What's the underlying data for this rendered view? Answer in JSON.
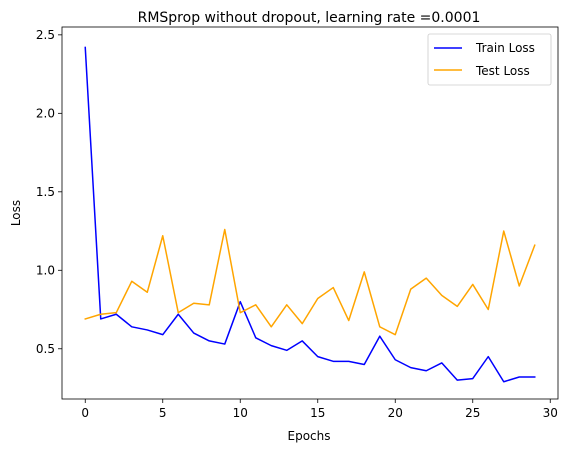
{
  "chart_data": {
    "type": "line",
    "title": "RMSprop without dropout, learning rate =0.0001",
    "xlabel": "Epochs",
    "ylabel": "Loss",
    "xlim": [
      -1.5,
      30.5
    ],
    "ylim": [
      0.18,
      2.55
    ],
    "xticks": [
      0,
      5,
      10,
      15,
      20,
      25,
      30
    ],
    "yticks": [
      0.5,
      1.0,
      1.5,
      2.0,
      2.5
    ],
    "ytick_labels": [
      "0.5",
      "1.0",
      "1.5",
      "2.0",
      "2.5"
    ],
    "grid": false,
    "legend_position": "top-right",
    "x": [
      0,
      1,
      2,
      3,
      4,
      5,
      6,
      7,
      8,
      9,
      10,
      11,
      12,
      13,
      14,
      15,
      16,
      17,
      18,
      19,
      20,
      21,
      22,
      23,
      24,
      25,
      26,
      27,
      28,
      29
    ],
    "series": [
      {
        "name": "Train Loss",
        "color": "#0000ff",
        "values": [
          2.42,
          0.69,
          0.72,
          0.64,
          0.62,
          0.59,
          0.72,
          0.6,
          0.55,
          0.53,
          0.8,
          0.57,
          0.52,
          0.49,
          0.55,
          0.45,
          0.42,
          0.42,
          0.4,
          0.58,
          0.43,
          0.38,
          0.36,
          0.41,
          0.3,
          0.31,
          0.45,
          0.29,
          0.32,
          0.32
        ]
      },
      {
        "name": "Test Loss",
        "color": "#ffa500",
        "values": [
          0.69,
          0.72,
          0.73,
          0.93,
          0.86,
          1.22,
          0.73,
          0.79,
          0.78,
          1.26,
          0.73,
          0.78,
          0.64,
          0.78,
          0.66,
          0.82,
          0.89,
          0.68,
          0.99,
          0.64,
          0.59,
          0.88,
          0.95,
          0.84,
          0.77,
          0.91,
          0.75,
          1.25,
          0.9,
          1.16
        ]
      }
    ]
  }
}
